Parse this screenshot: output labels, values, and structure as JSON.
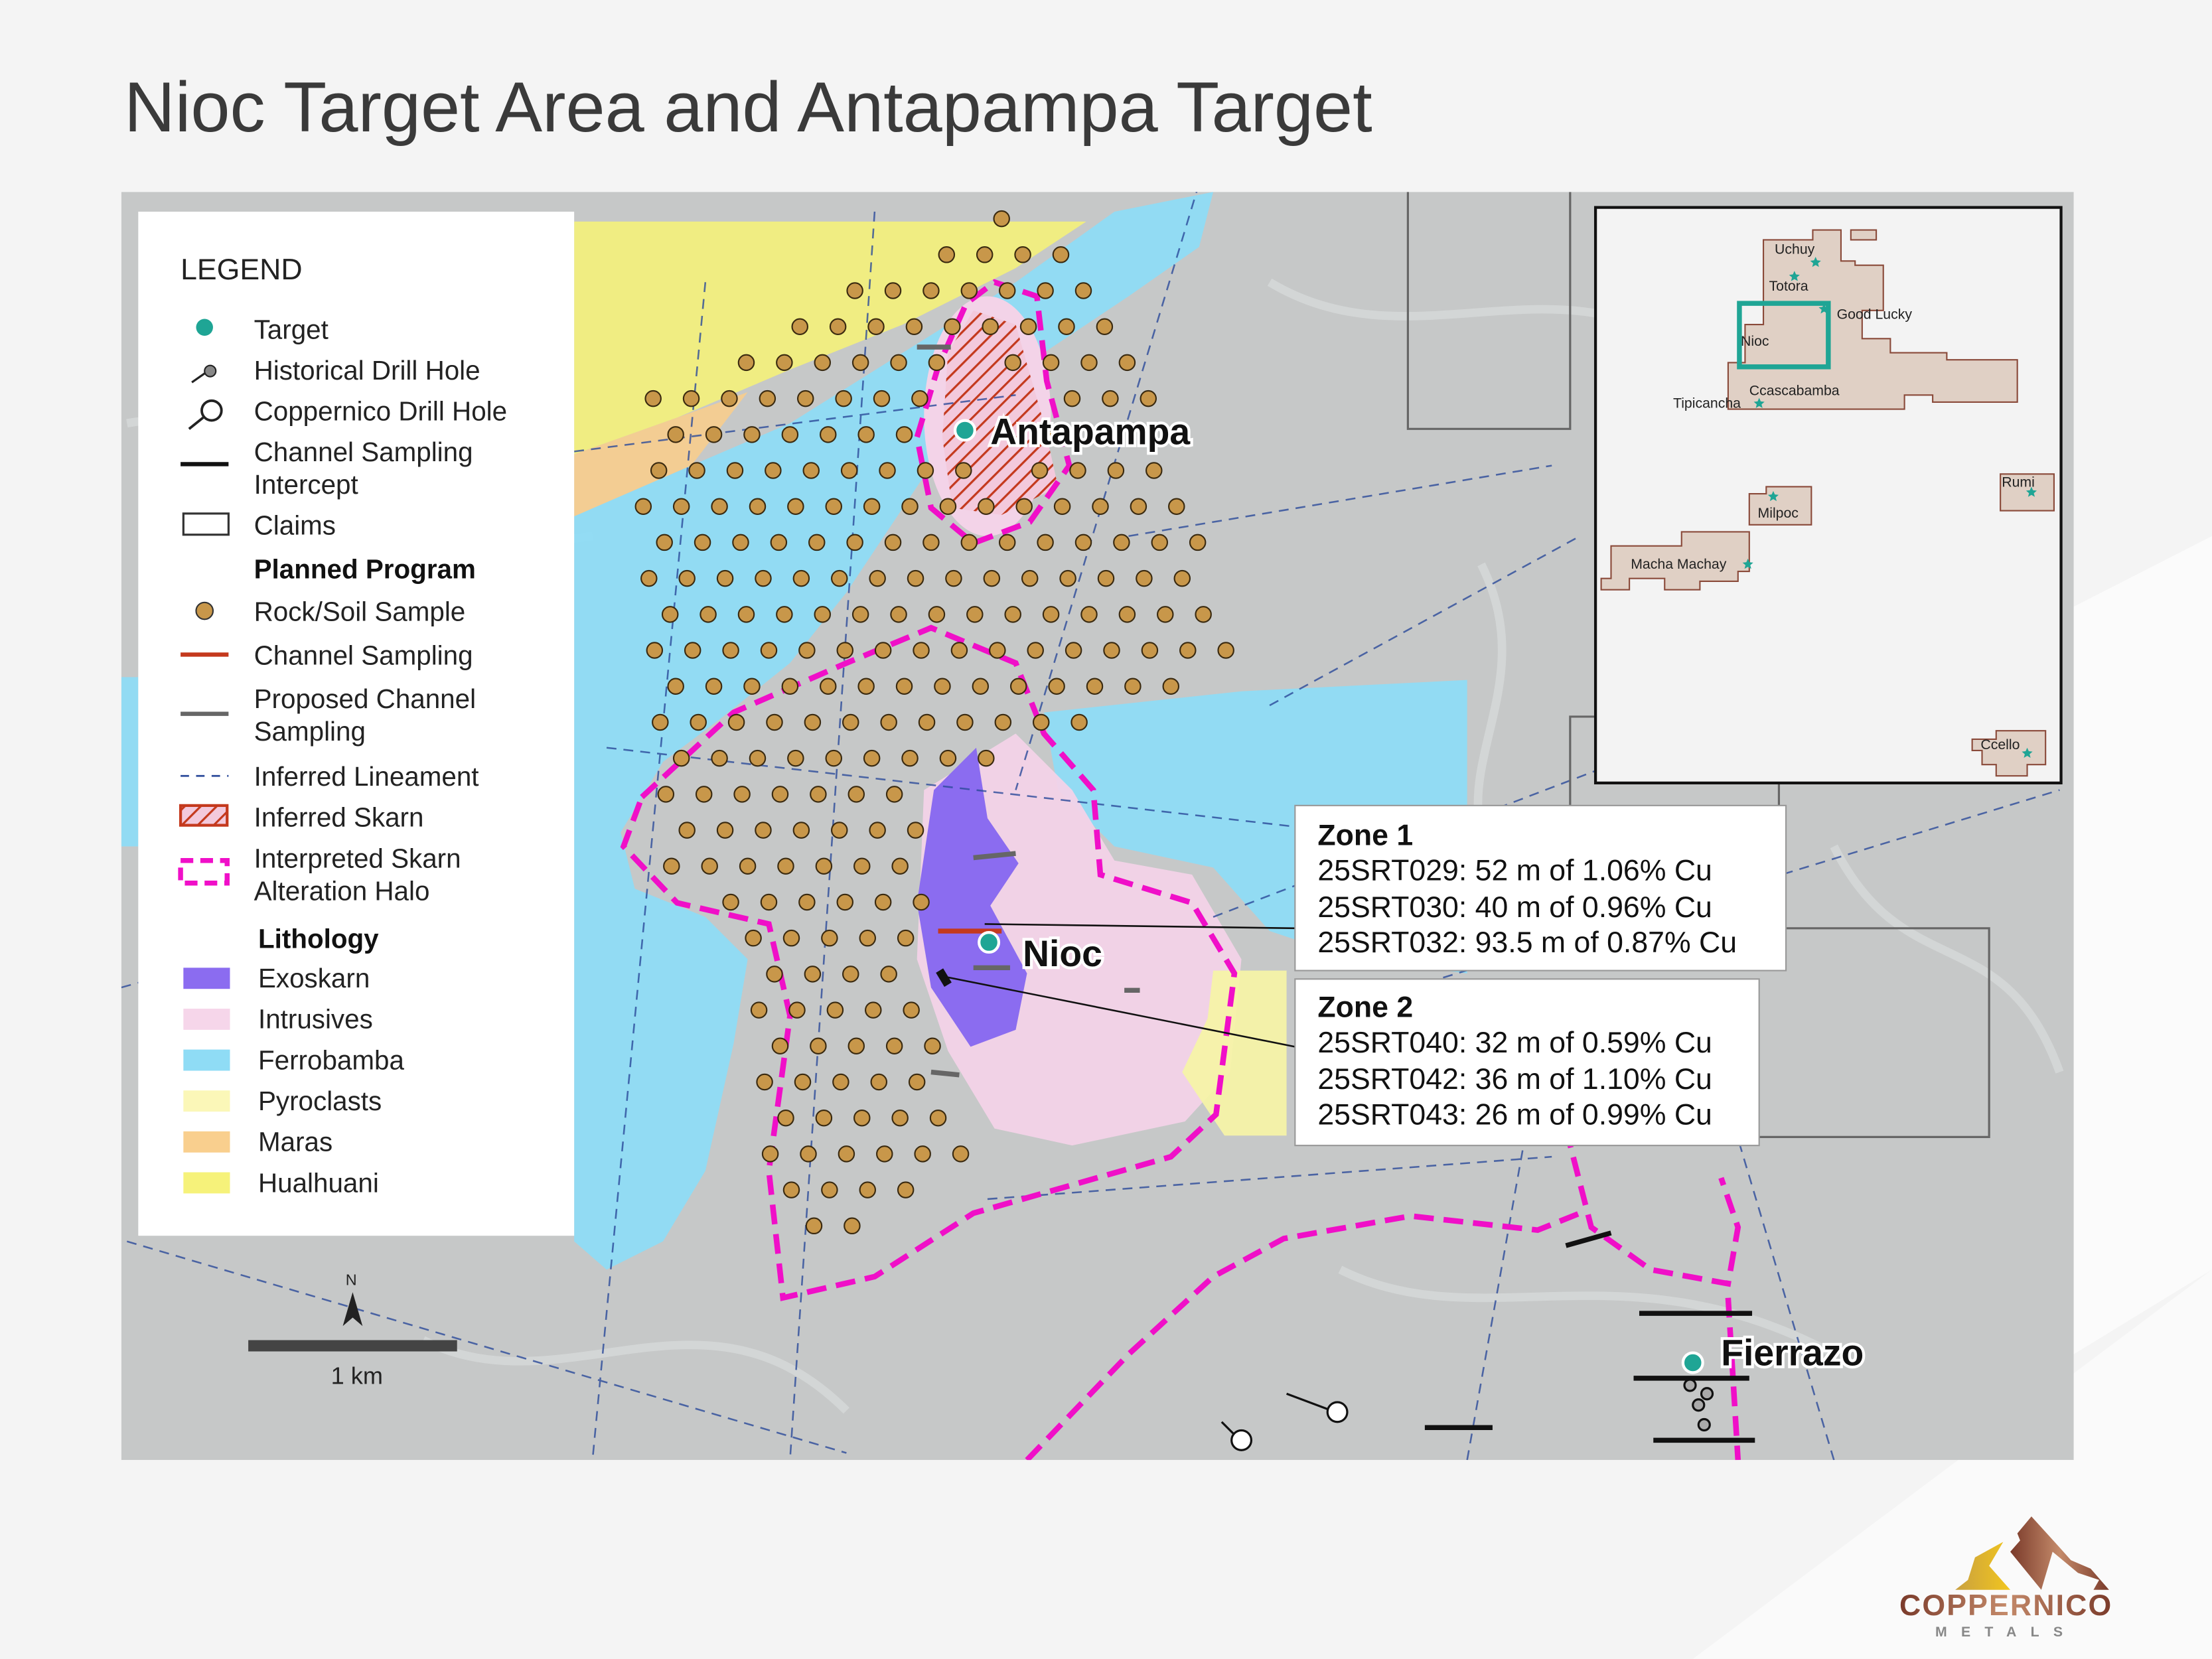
{
  "title": "Nioc Target Area and Antapampa Target",
  "legend": {
    "heading": "LEGEND",
    "items": [
      {
        "label": "Target",
        "icon": "teal-dot-icon"
      },
      {
        "label": "Historical Drill Hole",
        "icon": "small-drill-hole-icon"
      },
      {
        "label": "Coppernico Drill Hole",
        "icon": "drill-hole-icon"
      },
      {
        "label": "Channel Sampling",
        "label2": "Intercept",
        "icon": "black-line-icon"
      },
      {
        "label": "Claims",
        "icon": "rectangle-outline-icon"
      }
    ],
    "planned_heading": "Planned Program",
    "planned": [
      {
        "label": "Rock/Soil Sample",
        "icon": "brown-dot-icon"
      },
      {
        "label": "Channel Sampling",
        "icon": "red-line-icon"
      },
      {
        "label": "Proposed Channel",
        "label2": "Sampling",
        "icon": "gray-line-icon"
      },
      {
        "label": "Inferred Lineament",
        "icon": "dashed-blue-line-icon"
      },
      {
        "label": "Inferred Skarn",
        "icon": "red-hatch-icon"
      },
      {
        "label": "Interpreted Skarn",
        "label2": "Alteration Halo",
        "icon": "magenta-dashed-box-icon"
      }
    ],
    "lithology_heading": "Lithology",
    "lithology": [
      {
        "label": "Exoskarn",
        "color": "#8b6cf0"
      },
      {
        "label": "Intrusives",
        "color": "#f6d6ea"
      },
      {
        "label": "Ferrobamba",
        "color": "#8fdcf5"
      },
      {
        "label": "Pyroclasts",
        "color": "#fbf7b8"
      },
      {
        "label": "Maras",
        "color": "#f9cf8e"
      },
      {
        "label": "Hualhuani",
        "color": "#f6f27a"
      }
    ]
  },
  "targets": {
    "antapampa": "Antapampa",
    "nioc": "Nioc",
    "fierrazo": "Fierrazo"
  },
  "zone1": {
    "title": "Zone 1",
    "lines": [
      "25SRT029: 52 m of 1.06% Cu",
      "25SRT030: 40 m of 0.96% Cu",
      "25SRT032: 93.5 m of 0.87% Cu"
    ]
  },
  "zone2": {
    "title": "Zone 2",
    "lines": [
      "25SRT040: 32 m of 0.59% Cu",
      "25SRT042: 36 m of 1.10% Cu",
      "25SRT043: 26 m of 0.99% Cu"
    ]
  },
  "scale": {
    "label": "1 km",
    "north": "N"
  },
  "inset": {
    "labels": [
      "Uchuy",
      "Totora",
      "Good Lucky",
      "Nioc",
      "Ccascabamba",
      "Tipicancha",
      "Milpoc",
      "Rumi",
      "Macha Machay",
      "Ccello"
    ]
  },
  "logo": {
    "name": "COPPERNICO",
    "sub": "METALS"
  },
  "colors": {
    "target": "#1fa595",
    "halo": "#f00fc8",
    "sample": "#c8974a",
    "channel": "#c4391d",
    "lineament": "#2b4a9a"
  }
}
